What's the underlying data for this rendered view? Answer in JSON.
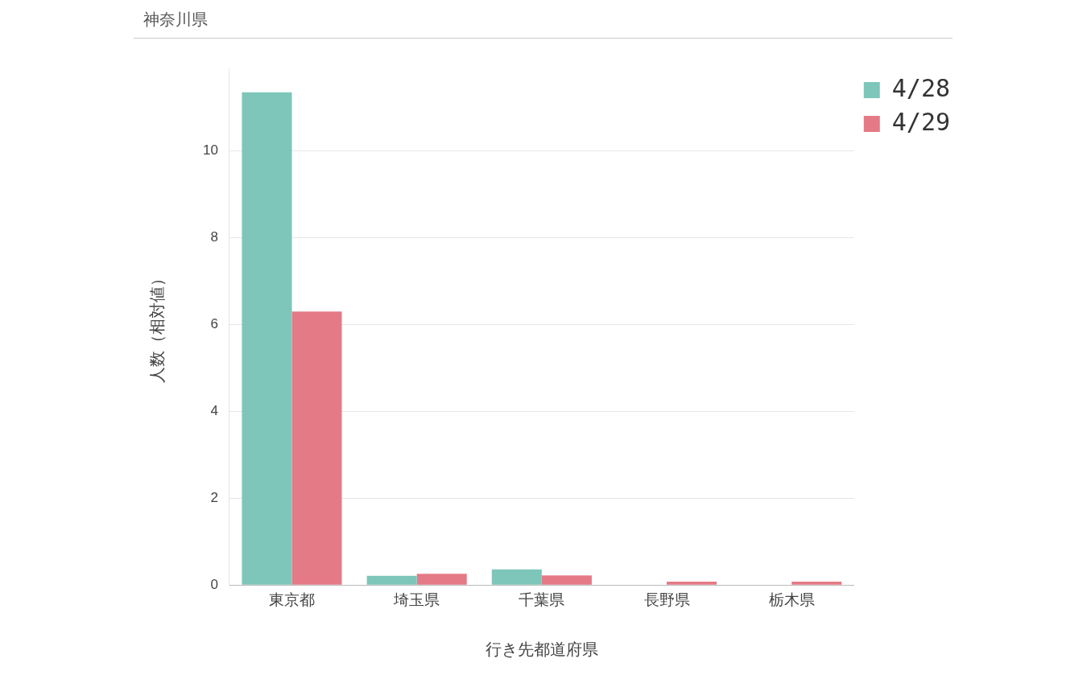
{
  "chart_data": {
    "type": "bar",
    "title": "神奈川県",
    "xlabel": "行き先都道府県",
    "ylabel": "人数（相対値）",
    "categories": [
      "東京都",
      "埼玉県",
      "千葉県",
      "長野県",
      "栃木県"
    ],
    "series": [
      {
        "name": "4/28",
        "color": "#7dc6b9",
        "values": [
          11.35,
          0.21,
          0.36,
          0,
          0
        ]
      },
      {
        "name": "4/29",
        "color": "#e47a86",
        "values": [
          6.3,
          0.26,
          0.22,
          0.08,
          0.08
        ]
      }
    ],
    "ylim": [
      0,
      11.9
    ],
    "yticks": [
      0,
      2,
      4,
      6,
      8,
      10
    ],
    "grid": "y",
    "legend": "top right"
  }
}
